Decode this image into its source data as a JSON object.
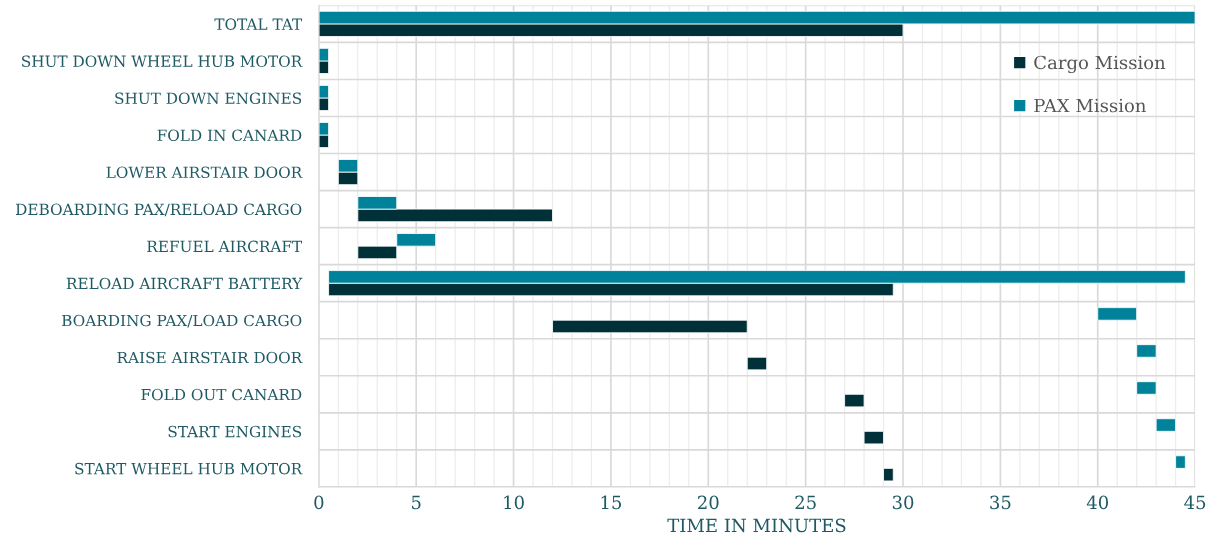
{
  "chart_data": {
    "type": "bar",
    "orientation": "horizontal",
    "xlabel": "TIME IN MINUTES",
    "categories": [
      "TOTAL TAT",
      "SHUT DOWN WHEEL HUB MOTOR",
      "SHUT DOWN ENGINES",
      "FOLD IN CANARD",
      "LOWER AIRSTAIR DOOR",
      "DEBOARDING PAX/RELOAD CARGO",
      "REFUEL AIRCRAFT",
      "RELOAD AIRCRAFT BATTERY",
      "BOARDING PAX/LOAD CARGO",
      "RAISE AIRSTAIR DOOR",
      "FOLD OUT CANARD",
      "START ENGINES",
      "START WHEEL HUB MOTOR"
    ],
    "series": [
      {
        "name": "Cargo Mission",
        "color": "#003038",
        "base": [
          0,
          0,
          0,
          0,
          1,
          2,
          2,
          0.5,
          12,
          22,
          27,
          28,
          29
        ],
        "values": [
          30,
          0.5,
          0.5,
          0.5,
          1,
          10,
          2,
          29,
          10,
          1,
          1,
          1,
          0.5
        ]
      },
      {
        "name": "PAX Mission",
        "color": "#00829a",
        "base": [
          0,
          0,
          0,
          0,
          1,
          2,
          4,
          0.5,
          40,
          42,
          42,
          43,
          44
        ],
        "values": [
          45,
          0.5,
          0.5,
          0.5,
          1,
          2,
          2,
          44,
          2,
          1,
          1,
          1,
          0.5
        ]
      }
    ],
    "xlim": [
      0,
      45
    ],
    "xticks": [
      0,
      5,
      10,
      15,
      20,
      25,
      30,
      35,
      40,
      45
    ],
    "grid": true,
    "legend": "top right"
  }
}
